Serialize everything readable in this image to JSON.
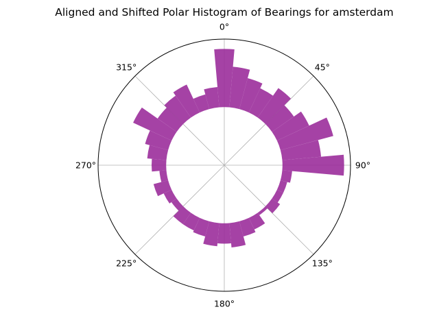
{
  "chart_data": {
    "type": "bar",
    "projection": "polar",
    "title": "Aligned and Shifted Polar Histogram of Bearings for amsterdam",
    "theta_direction": "clockwise",
    "theta_zero": "N",
    "theta_tick_labels": [
      "0°",
      "45°",
      "90°",
      "135°",
      "180°",
      "225°",
      "270°",
      "315°"
    ],
    "theta_tick_degrees": [
      0,
      45,
      90,
      135,
      180,
      225,
      270,
      315
    ],
    "bin_width_deg": 10,
    "bin_centers_deg": [
      0,
      10,
      20,
      30,
      40,
      50,
      60,
      70,
      80,
      90,
      100,
      110,
      120,
      130,
      140,
      150,
      160,
      170,
      180,
      190,
      200,
      210,
      220,
      230,
      240,
      250,
      260,
      270,
      280,
      290,
      300,
      310,
      320,
      330,
      340,
      350
    ],
    "values": [
      1.0,
      0.7,
      0.55,
      0.46,
      0.62,
      0.46,
      0.61,
      0.94,
      0.67,
      1.06,
      0.17,
      0.12,
      0.12,
      0.17,
      0.05,
      0.22,
      0.27,
      0.42,
      0.35,
      0.4,
      0.27,
      0.24,
      0.24,
      0.11,
      0.15,
      0.26,
      0.12,
      0.25,
      0.33,
      0.41,
      0.73,
      0.4,
      0.46,
      0.53,
      0.26,
      0.35
    ],
    "rlim": [
      -1.0,
      1.17
    ],
    "radial_grid_visible": false,
    "angular_grid": true,
    "bar_color": "#9b2d9b",
    "bar_alpha": 0.9,
    "grid_color": "#b0b0b0",
    "frame_color": "#000000"
  }
}
